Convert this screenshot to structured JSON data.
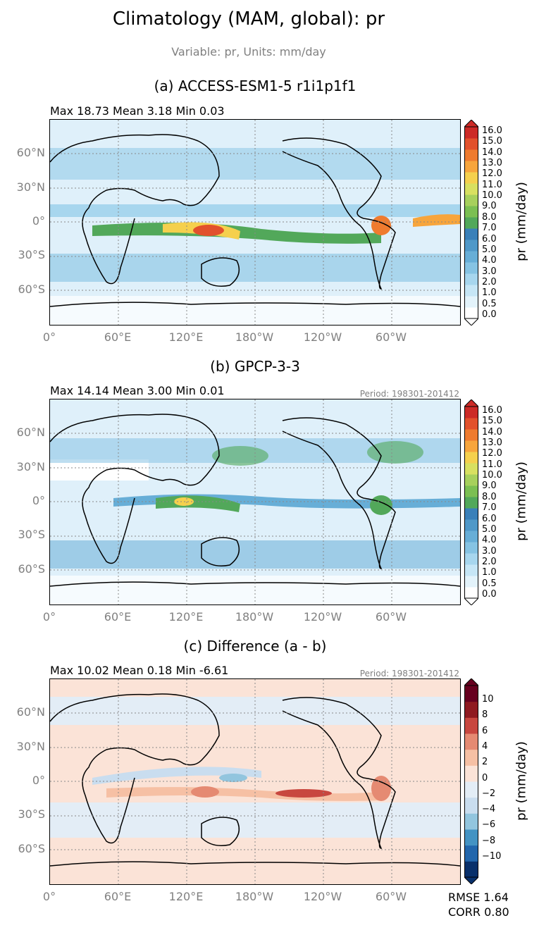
{
  "figure": {
    "title": "Climatology (MAM, global): pr",
    "subtitle": "Variable: pr, Units: mm/day"
  },
  "panels": [
    {
      "title": "(a) ACCESS-ESM1-5 r1i1p1f1",
      "stats": "Max 18.73 Mean 3.18 Min 0.03",
      "period": "",
      "colorbar_label": "pr (mm/day)",
      "colorbar_ticks": [
        "16.0",
        "15.0",
        "14.0",
        "13.0",
        "12.0",
        "11.0",
        "10.0",
        "9.0",
        "8.0",
        "7.0",
        "6.0",
        "5.0",
        "4.0",
        "3.0",
        "2.0",
        "1.0",
        "0.5",
        "0.0"
      ]
    },
    {
      "title": "(b) GPCP-3-3",
      "stats": "Max 14.14 Mean 3.00 Min 0.01",
      "period": "Period: 198301-201412",
      "colorbar_label": "pr (mm/day)",
      "colorbar_ticks": [
        "16.0",
        "15.0",
        "14.0",
        "13.0",
        "12.0",
        "11.0",
        "10.0",
        "9.0",
        "8.0",
        "7.0",
        "6.0",
        "5.0",
        "4.0",
        "3.0",
        "2.0",
        "1.0",
        "0.5",
        "0.0"
      ]
    },
    {
      "title": "(c) Difference (a - b)",
      "stats": "Max 10.02 Mean 0.18 Min -6.61",
      "period": "Period: 198301-201412",
      "colorbar_label": "pr (mm/day)",
      "colorbar_ticks": [
        "10",
        "8",
        "6",
        "4",
        "2",
        "0",
        "−2",
        "−4",
        "−6",
        "−8",
        "−10"
      ],
      "rmse": "RMSE 1.64",
      "corr": "CORR 0.80"
    }
  ],
  "axes": {
    "lat_ticks": [
      "60°N",
      "30°N",
      "0°",
      "30°S",
      "60°S"
    ],
    "lon_ticks": [
      "0°",
      "60°E",
      "120°E",
      "180°W",
      "120°W",
      "60°W"
    ]
  },
  "chart_data": [
    {
      "type": "heatmap",
      "title": "(a) ACCESS-ESM1-5 r1i1p1f1",
      "variable": "pr",
      "units": "mm/day",
      "levels": [
        0.0,
        0.5,
        1.0,
        2.0,
        3.0,
        4.0,
        5.0,
        6.0,
        7.0,
        8.0,
        9.0,
        10.0,
        11.0,
        12.0,
        13.0,
        14.0,
        15.0,
        16.0
      ],
      "xlim": [
        0,
        360
      ],
      "ylim": [
        -90,
        90
      ],
      "colors_seq": [
        "#ffffff",
        "#e3f3fb",
        "#c6e6f6",
        "#a7d6ee",
        "#86c3e3",
        "#67aed7",
        "#4f98c8",
        "#3a80b9",
        "#52a85a",
        "#7bbf52",
        "#a7d05c",
        "#d8e060",
        "#f5d04d",
        "#f7a53c",
        "#ef7b2f",
        "#e2512c",
        "#cc2a26",
        "#b0171f"
      ]
    },
    {
      "type": "heatmap",
      "title": "(b) GPCP-3-3",
      "variable": "pr",
      "units": "mm/day",
      "levels": [
        0.0,
        0.5,
        1.0,
        2.0,
        3.0,
        4.0,
        5.0,
        6.0,
        7.0,
        8.0,
        9.0,
        10.0,
        11.0,
        12.0,
        13.0,
        14.0,
        15.0,
        16.0
      ],
      "xlim": [
        0,
        360
      ],
      "ylim": [
        -90,
        90
      ]
    },
    {
      "type": "heatmap",
      "title": "(c) Difference (a - b)",
      "variable": "pr",
      "units": "mm/day",
      "levels": [
        -10,
        -8,
        -6,
        -4,
        -2,
        0,
        2,
        4,
        6,
        8,
        10
      ],
      "xlim": [
        0,
        360
      ],
      "ylim": [
        -90,
        90
      ],
      "colors_div": [
        "#08306b",
        "#2166ac",
        "#4393c3",
        "#92c5de",
        "#c9ddef",
        "#e3edf6",
        "#fbe3d7",
        "#f6c0a4",
        "#e58a72",
        "#c8473f",
        "#8f1a20",
        "#67001f"
      ]
    }
  ]
}
